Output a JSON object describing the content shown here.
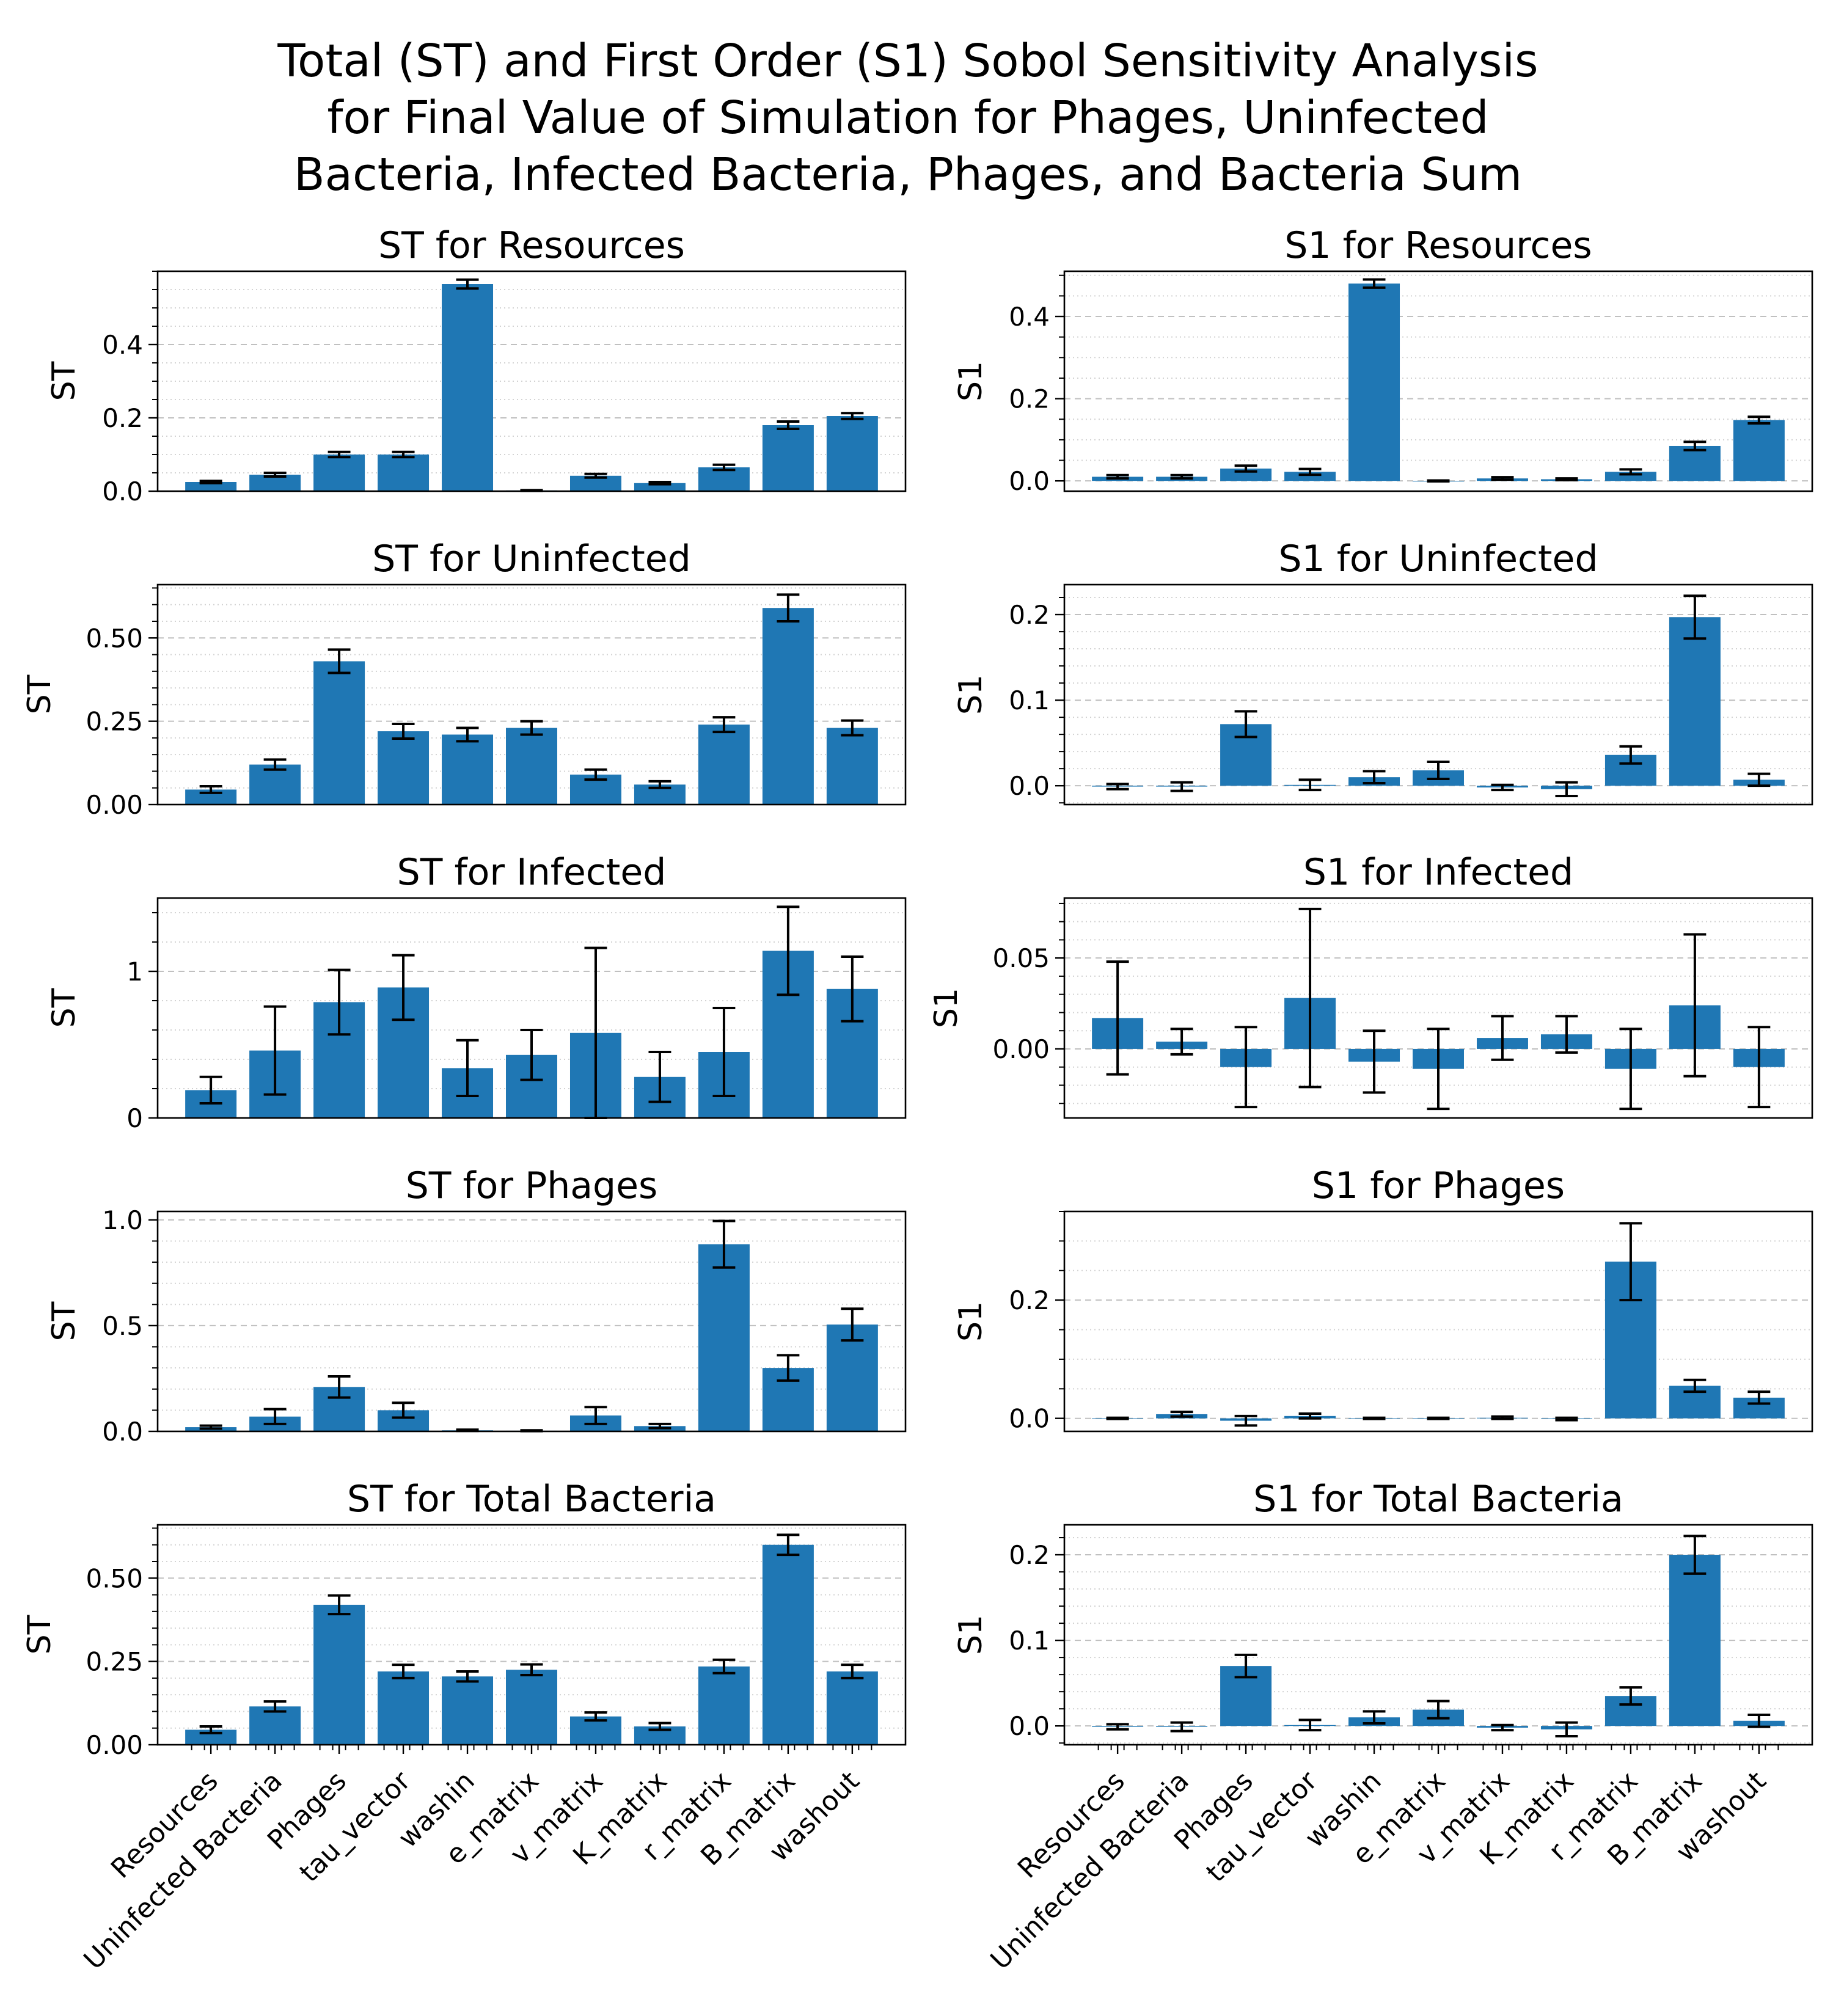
{
  "figure": {
    "title_lines": [
      "Total (ST) and First Order (S1) Sobol Sensitivity Analysis",
      "for Final Value of Simulation for Phages, Uninfected",
      "Bacteria, Infected Bacteria, Phages, and Bacteria Sum"
    ],
    "bar_color": "#1f77b4"
  },
  "chart_data": [
    {
      "type": "bar",
      "title": "ST for Resources",
      "xlabel": "",
      "ylabel": "ST",
      "ylim": [
        0,
        0.6
      ],
      "yticks": [
        0.0,
        0.2,
        0.4
      ],
      "ytick_labels": [
        "0.0",
        "0.2",
        "0.4"
      ],
      "categories": [
        "Resources",
        "Uninfected Bacteria",
        "Phages",
        "tau_vector",
        "washin",
        "e_matrix",
        "v_matrix",
        "K_matrix",
        "r_matrix",
        "B_matrix",
        "washout"
      ],
      "values": [
        0.025,
        0.045,
        0.1,
        0.1,
        0.565,
        0.002,
        0.042,
        0.022,
        0.065,
        0.18,
        0.205
      ],
      "errors": [
        0.003,
        0.005,
        0.007,
        0.007,
        0.012,
        0.001,
        0.005,
        0.003,
        0.007,
        0.01,
        0.008
      ],
      "show_xticklabels": false
    },
    {
      "type": "bar",
      "title": "S1 for Resources",
      "xlabel": "",
      "ylabel": "S1",
      "ylim": [
        -0.025,
        0.51
      ],
      "yticks": [
        0.0,
        0.2,
        0.4
      ],
      "ytick_labels": [
        "0.0",
        "0.2",
        "0.4"
      ],
      "categories": [
        "Resources",
        "Uninfected Bacteria",
        "Phages",
        "tau_vector",
        "washin",
        "e_matrix",
        "v_matrix",
        "K_matrix",
        "r_matrix",
        "B_matrix",
        "washout"
      ],
      "values": [
        0.01,
        0.01,
        0.03,
        0.022,
        0.48,
        0.0,
        0.006,
        0.004,
        0.022,
        0.085,
        0.148
      ],
      "errors": [
        0.004,
        0.004,
        0.007,
        0.007,
        0.01,
        0.001,
        0.003,
        0.002,
        0.006,
        0.01,
        0.008
      ],
      "show_xticklabels": false
    },
    {
      "type": "bar",
      "title": "ST for Uninfected",
      "xlabel": "",
      "ylabel": "ST",
      "ylim": [
        0,
        0.66
      ],
      "yticks": [
        0.0,
        0.25,
        0.5
      ],
      "ytick_labels": [
        "0.00",
        "0.25",
        "0.50"
      ],
      "categories": [
        "Resources",
        "Uninfected Bacteria",
        "Phages",
        "tau_vector",
        "washin",
        "e_matrix",
        "v_matrix",
        "K_matrix",
        "r_matrix",
        "B_matrix",
        "washout"
      ],
      "values": [
        0.045,
        0.12,
        0.43,
        0.22,
        0.21,
        0.23,
        0.09,
        0.06,
        0.24,
        0.59,
        0.23
      ],
      "errors": [
        0.01,
        0.015,
        0.035,
        0.022,
        0.02,
        0.02,
        0.015,
        0.01,
        0.022,
        0.04,
        0.022
      ],
      "show_xticklabels": false
    },
    {
      "type": "bar",
      "title": "S1 for Uninfected",
      "xlabel": "",
      "ylabel": "S1",
      "ylim": [
        -0.022,
        0.235
      ],
      "yticks": [
        0.0,
        0.1,
        0.2
      ],
      "ytick_labels": [
        "0.0",
        "0.1",
        "0.2"
      ],
      "categories": [
        "Resources",
        "Uninfected Bacteria",
        "Phages",
        "tau_vector",
        "washin",
        "e_matrix",
        "v_matrix",
        "K_matrix",
        "r_matrix",
        "B_matrix",
        "washout"
      ],
      "values": [
        -0.001,
        -0.001,
        0.072,
        0.001,
        0.01,
        0.018,
        -0.002,
        -0.004,
        0.036,
        0.197,
        0.007
      ],
      "errors": [
        0.003,
        0.005,
        0.015,
        0.006,
        0.007,
        0.01,
        0.003,
        0.008,
        0.01,
        0.025,
        0.007
      ],
      "show_xticklabels": false
    },
    {
      "type": "bar",
      "title": "ST for Infected",
      "xlabel": "",
      "ylabel": "ST",
      "ylim": [
        0,
        1.5
      ],
      "yticks": [
        0,
        1
      ],
      "ytick_labels": [
        "0",
        "1"
      ],
      "categories": [
        "Resources",
        "Uninfected Bacteria",
        "Phages",
        "tau_vector",
        "washin",
        "e_matrix",
        "v_matrix",
        "K_matrix",
        "r_matrix",
        "B_matrix",
        "washout"
      ],
      "values": [
        0.19,
        0.46,
        0.79,
        0.89,
        0.34,
        0.43,
        0.58,
        0.28,
        0.45,
        1.14,
        0.88
      ],
      "errors": [
        0.09,
        0.3,
        0.22,
        0.22,
        0.19,
        0.17,
        0.58,
        0.17,
        0.3,
        0.3,
        0.22
      ],
      "show_xticklabels": false
    },
    {
      "type": "bar",
      "title": "S1 for Infected",
      "xlabel": "",
      "ylabel": "S1",
      "ylim": [
        -0.038,
        0.083
      ],
      "yticks": [
        0.0,
        0.05
      ],
      "ytick_labels": [
        "0.00",
        "0.05"
      ],
      "categories": [
        "Resources",
        "Uninfected Bacteria",
        "Phages",
        "tau_vector",
        "washin",
        "e_matrix",
        "v_matrix",
        "K_matrix",
        "r_matrix",
        "B_matrix",
        "washout"
      ],
      "values": [
        0.017,
        0.004,
        -0.01,
        0.028,
        -0.007,
        -0.011,
        0.006,
        0.008,
        -0.011,
        0.024,
        -0.01
      ],
      "errors": [
        0.031,
        0.007,
        0.022,
        0.049,
        0.017,
        0.022,
        0.012,
        0.01,
        0.022,
        0.039,
        0.022
      ],
      "show_xticklabels": false
    },
    {
      "type": "bar",
      "title": "ST for Phages",
      "xlabel": "",
      "ylabel": "ST",
      "ylim": [
        0,
        1.04
      ],
      "yticks": [
        0.0,
        0.5,
        1.0
      ],
      "ytick_labels": [
        "0.0",
        "0.5",
        "1.0"
      ],
      "categories": [
        "Resources",
        "Uninfected Bacteria",
        "Phages",
        "tau_vector",
        "washin",
        "e_matrix",
        "v_matrix",
        "K_matrix",
        "r_matrix",
        "B_matrix",
        "washout"
      ],
      "values": [
        0.02,
        0.07,
        0.21,
        0.1,
        0.005,
        0.003,
        0.075,
        0.025,
        0.885,
        0.3,
        0.505
      ],
      "errors": [
        0.007,
        0.035,
        0.05,
        0.035,
        0.003,
        0.002,
        0.04,
        0.01,
        0.11,
        0.06,
        0.075
      ],
      "show_xticklabels": false
    },
    {
      "type": "bar",
      "title": "S1 for Phages",
      "xlabel": "",
      "ylabel": "S1",
      "ylim": [
        -0.022,
        0.35
      ],
      "yticks": [
        0.0,
        0.2
      ],
      "ytick_labels": [
        "0.0",
        "0.2"
      ],
      "categories": [
        "Resources",
        "Uninfected Bacteria",
        "Phages",
        "tau_vector",
        "washin",
        "e_matrix",
        "v_matrix",
        "K_matrix",
        "r_matrix",
        "B_matrix",
        "washout"
      ],
      "values": [
        0.0,
        0.007,
        -0.004,
        0.004,
        0.0,
        0.0,
        0.001,
        -0.001,
        0.265,
        0.055,
        0.035
      ],
      "errors": [
        0.001,
        0.004,
        0.008,
        0.004,
        0.001,
        0.001,
        0.002,
        0.002,
        0.065,
        0.01,
        0.01
      ],
      "show_xticklabels": false
    },
    {
      "type": "bar",
      "title": "ST for Total Bacteria",
      "xlabel": "",
      "ylabel": "ST",
      "ylim": [
        0,
        0.66
      ],
      "yticks": [
        0.0,
        0.25,
        0.5
      ],
      "ytick_labels": [
        "0.00",
        "0.25",
        "0.50"
      ],
      "categories": [
        "Resources",
        "Uninfected Bacteria",
        "Phages",
        "tau_vector",
        "washin",
        "e_matrix",
        "v_matrix",
        "K_matrix",
        "r_matrix",
        "B_matrix",
        "washout"
      ],
      "values": [
        0.045,
        0.115,
        0.42,
        0.22,
        0.205,
        0.225,
        0.085,
        0.055,
        0.235,
        0.6,
        0.22
      ],
      "errors": [
        0.01,
        0.015,
        0.028,
        0.02,
        0.015,
        0.016,
        0.012,
        0.01,
        0.02,
        0.03,
        0.02
      ],
      "show_xticklabels": true
    },
    {
      "type": "bar",
      "title": "S1 for Total Bacteria",
      "xlabel": "",
      "ylabel": "S1",
      "ylim": [
        -0.022,
        0.235
      ],
      "yticks": [
        0.0,
        0.1,
        0.2
      ],
      "ytick_labels": [
        "0.0",
        "0.1",
        "0.2"
      ],
      "categories": [
        "Resources",
        "Uninfected Bacteria",
        "Phages",
        "tau_vector",
        "washin",
        "e_matrix",
        "v_matrix",
        "K_matrix",
        "r_matrix",
        "B_matrix",
        "washout"
      ],
      "values": [
        -0.001,
        -0.001,
        0.07,
        0.001,
        0.01,
        0.019,
        -0.002,
        -0.004,
        0.035,
        0.2,
        0.006
      ],
      "errors": [
        0.003,
        0.005,
        0.013,
        0.006,
        0.007,
        0.01,
        0.003,
        0.008,
        0.01,
        0.022,
        0.007
      ],
      "show_xticklabels": true
    }
  ]
}
